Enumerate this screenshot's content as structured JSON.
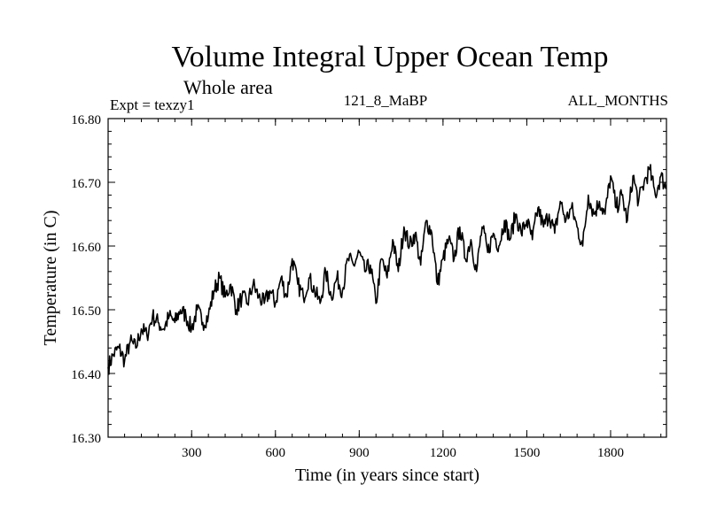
{
  "chart_data": {
    "type": "line",
    "title": "Volume Integral Upper Ocean Temp",
    "subtitle": "Whole area",
    "experiment_label": "Expt = texzy1",
    "run_label": "121_8_MaBP",
    "period_label": "ALL_MONTHS",
    "xlabel": "Time (in years since start)",
    "ylabel": "Temperature (in C)",
    "xlim": [
      1,
      2000
    ],
    "ylim": [
      16.3,
      16.8
    ],
    "xticks": [
      300,
      600,
      900,
      1200,
      1500,
      1800
    ],
    "xtick_labels": [
      "300",
      "600",
      "900",
      "1200",
      "1500",
      "1800"
    ],
    "yticks": [
      16.3,
      16.4,
      16.5,
      16.6,
      16.7,
      16.8
    ],
    "ytick_labels": [
      "16.30",
      "16.40",
      "16.50",
      "16.60",
      "16.70",
      "16.80"
    ],
    "grid": false,
    "series": [
      {
        "name": "Volume integral upper ocean temperature",
        "color": "#000000",
        "x": [
          1,
          20,
          40,
          60,
          80,
          100,
          120,
          140,
          160,
          180,
          200,
          220,
          240,
          260,
          280,
          300,
          320,
          340,
          360,
          380,
          400,
          420,
          440,
          460,
          480,
          500,
          520,
          540,
          560,
          580,
          600,
          620,
          640,
          660,
          680,
          700,
          720,
          740,
          760,
          780,
          800,
          820,
          840,
          860,
          880,
          900,
          920,
          940,
          960,
          980,
          1000,
          1020,
          1040,
          1060,
          1080,
          1100,
          1120,
          1140,
          1160,
          1180,
          1200,
          1220,
          1240,
          1260,
          1280,
          1300,
          1320,
          1340,
          1360,
          1380,
          1400,
          1420,
          1440,
          1460,
          1480,
          1500,
          1520,
          1540,
          1560,
          1580,
          1600,
          1620,
          1640,
          1660,
          1680,
          1700,
          1720,
          1740,
          1760,
          1780,
          1800,
          1820,
          1840,
          1860,
          1880,
          1900,
          1920,
          1940,
          1960,
          1980,
          2000
        ],
        "y": [
          16.41,
          16.43,
          16.44,
          16.42,
          16.45,
          16.44,
          16.47,
          16.46,
          16.49,
          16.48,
          16.47,
          16.49,
          16.48,
          16.5,
          16.49,
          16.47,
          16.5,
          16.48,
          16.49,
          16.53,
          16.55,
          16.52,
          16.54,
          16.5,
          16.52,
          16.51,
          16.54,
          16.52,
          16.51,
          16.53,
          16.51,
          16.55,
          16.52,
          16.58,
          16.54,
          16.52,
          16.55,
          16.53,
          16.51,
          16.56,
          16.52,
          16.55,
          16.53,
          16.58,
          16.57,
          16.59,
          16.56,
          16.57,
          16.51,
          16.58,
          16.55,
          16.61,
          16.56,
          16.63,
          16.6,
          16.62,
          16.57,
          16.64,
          16.62,
          16.54,
          16.58,
          16.61,
          16.58,
          16.63,
          16.58,
          16.61,
          16.56,
          16.63,
          16.59,
          16.62,
          16.6,
          16.64,
          16.61,
          16.65,
          16.62,
          16.64,
          16.61,
          16.66,
          16.63,
          16.65,
          16.62,
          16.67,
          16.64,
          16.66,
          16.63,
          16.6,
          16.68,
          16.65,
          16.67,
          16.65,
          16.71,
          16.66,
          16.68,
          16.64,
          16.71,
          16.67,
          16.7,
          16.72,
          16.68,
          16.71,
          16.69
        ]
      }
    ]
  }
}
